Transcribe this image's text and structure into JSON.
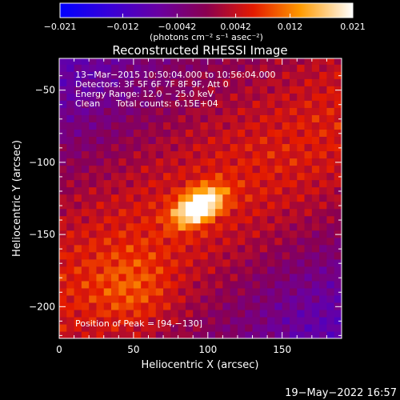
{
  "chart_data": {
    "type": "heatmap",
    "title": "Reconstructed RHESSI Image",
    "xlabel": "Heliocentric X (arcsec)",
    "ylabel": "Heliocentric Y (arcsec)",
    "xlim": [
      0,
      190
    ],
    "ylim": [
      -222,
      -28
    ],
    "xticks": [
      0,
      50,
      100,
      150
    ],
    "yticks": [
      -50,
      -100,
      -150,
      -200
    ],
    "xtick_labels": [
      "0",
      "50",
      "100",
      "150"
    ],
    "ytick_labels": [
      "−50",
      "−100",
      "−150",
      "−200"
    ],
    "annotations": {
      "time_range": "13−Mar−2015 10:50:04.000 to 10:56:04.000",
      "detectors": "Detectors: 3F 5F 6F 7F 8F 9F, Att 0",
      "energy_range": "Energy Range: 12.0 − 25.0 keV",
      "method": "Clean",
      "total_counts": "Total counts: 6.15E+04",
      "peak_position": "Position of Peak = [94,−130]"
    },
    "peak": [
      94,
      -130
    ],
    "colorbar": {
      "min": -0.021,
      "max": 0.021,
      "ticks": [
        -0.021,
        -0.012,
        -0.0042,
        0.0042,
        0.012,
        0.021
      ],
      "tick_labels": [
        "−0.021",
        "−0.012",
        "−0.0042",
        "0.0042",
        "0.012",
        "0.021"
      ],
      "unit_label": "(photons cm⁻² s⁻¹ asec⁻²)"
    },
    "footer_date": "19−May−2022 16:57"
  }
}
